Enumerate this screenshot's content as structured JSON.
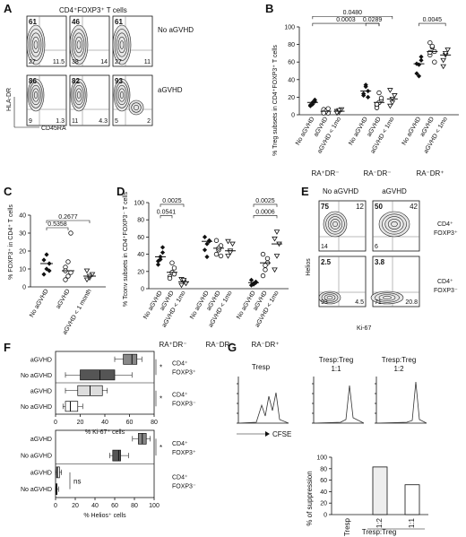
{
  "panels": {
    "A": {
      "letter": "A",
      "title": "CD4⁺FOXP3⁺ T cells",
      "row_labels": [
        "No aGVHD",
        "aGVHD"
      ],
      "x_label": "CD45RA",
      "y_label": "HLA-DR",
      "row1": [
        {
          "ul": "61",
          "ll": "27",
          "lr": "11.5"
        },
        {
          "ul": "46",
          "ll": "38",
          "lr": "14"
        },
        {
          "ul": "61",
          "ll": "27",
          "lr": "11"
        }
      ],
      "row2": [
        {
          "ul": "86",
          "ll": "9",
          "lr": "1.3"
        },
        {
          "ul": "82",
          "ll": "11",
          "lr": "4.3"
        },
        {
          "ul": "93",
          "ll": "5",
          "lr": "2"
        }
      ]
    },
    "B": {
      "letter": "B",
      "ylabel": "% Treg subsets in CD4⁺FOXP3⁺ T cells",
      "yticks": [
        "0",
        "20",
        "40",
        "60",
        "80",
        "100"
      ],
      "pvals": [
        "0.0480",
        "0.0003",
        "0.0289",
        "0.0045"
      ],
      "groups": [
        "No aGVHD",
        "aGVHD",
        "aGVHD < 1mo"
      ],
      "subsets": [
        "RA⁺DR⁻",
        "RA⁻DR⁻",
        "RA⁻DR⁺"
      ]
    },
    "C": {
      "letter": "C",
      "ylabel": "% FOXP3⁺ in CD4⁺ T cells",
      "yticks": [
        "0",
        "10",
        "20",
        "30",
        "40"
      ],
      "pvals": [
        "0.2677",
        "0.5358"
      ],
      "groups": [
        "No aGVHD",
        "aGVHD",
        "aGVHD < 1 month"
      ]
    },
    "D": {
      "letter": "D",
      "ylabel": "% Tconv subsets in CD4⁺FOXP3⁻ T cells",
      "yticks": [
        "0",
        "20",
        "40",
        "60",
        "80",
        "100"
      ],
      "pvals": [
        "0.0025",
        "0.0541",
        "0.0006",
        "0.0025"
      ],
      "groups": [
        "No aGVHD",
        "aGVHD",
        "aGVHD < 1mo"
      ],
      "subsets": [
        "RA⁺DR⁻",
        "RA⁻DR⁻",
        "RA⁻DR⁺"
      ]
    },
    "E": {
      "letter": "E",
      "col_labels": [
        "No aGVHD",
        "aGVHD"
      ],
      "row_labels": [
        "CD4⁺ FOXP3⁺",
        "CD4⁺ FOXP3⁻"
      ],
      "y_label": "Helios",
      "x_label": "Ki-67",
      "row1": [
        {
          "ul": "75",
          "ur": "12",
          "ll": "14"
        },
        {
          "ul": "50",
          "ur": "42",
          "ll": "6"
        }
      ],
      "row2": [
        {
          "ul": "2.5",
          "ll": "93",
          "lr": "4.5"
        },
        {
          "ul": "3.8",
          "ll": "71",
          "lr": "20.8"
        }
      ]
    },
    "F": {
      "letter": "F",
      "top": {
        "rows": [
          "aGVHD",
          "No aGVHD",
          "aGVHD",
          "No aGVHD"
        ],
        "groups": [
          "CD4⁺ FOXP3⁺",
          "CD4⁺ FOXP3⁻"
        ],
        "xticks": [
          "0",
          "20",
          "40",
          "60",
          "80"
        ],
        "xlabel": "% Ki-67⁺ cells",
        "sig": [
          "*",
          "*"
        ]
      },
      "bottom": {
        "rows": [
          "aGVHD",
          "No aGVHD",
          "aGVHD",
          "No aGVHD"
        ],
        "groups": [
          "CD4⁺ FOXP3⁺",
          "CD4⁺ FOXP3⁻"
        ],
        "xticks": [
          "0",
          "20",
          "40",
          "60",
          "80",
          "100"
        ],
        "xlabel": "% Helios⁺ cells",
        "sig": [
          "*",
          "ns"
        ]
      }
    },
    "G": {
      "letter": "G",
      "hist_titles": [
        "Tresp",
        "Tresp:Treg 1:1",
        "Tresp:Treg 1:2"
      ],
      "cfse_label": "CFSE",
      "ylabel": "% of suppression",
      "yticks": [
        "0",
        "20",
        "40",
        "60",
        "80",
        "100"
      ],
      "xlabel": "Tresp:Treg"
    }
  },
  "chart_data": [
    {
      "type": "scatter",
      "panel": "B",
      "categories": [
        "RA⁺DR⁻",
        "RA⁻DR⁻",
        "RA⁻DR⁺"
      ],
      "ylim": [
        0,
        100
      ],
      "series": [
        {
          "name": "No aGVHD",
          "values": [
            [
              11,
              14,
              17,
              10,
              12,
              15
            ],
            [
              22,
              32,
              27,
              24,
              34,
              20
            ],
            [
              47,
              57,
              62,
              58,
              44,
              66
            ]
          ]
        },
        {
          "name": "aGVHD",
          "values": [
            [
              3,
              5,
              2,
              6,
              4,
              7,
              2
            ],
            [
              11,
              14,
              17,
              8,
              25,
              19,
              12
            ],
            [
              68,
              77,
              72,
              82,
              78,
              60,
              71
            ]
          ]
        },
        {
          "name": "aGVHD < 1mo",
          "values": [
            [
              4,
              3,
              6,
              2,
              5
            ],
            [
              10,
              14,
              22,
              28,
              18
            ],
            [
              62,
              68,
              74,
              55,
              70
            ]
          ]
        }
      ]
    },
    {
      "type": "scatter",
      "panel": "C",
      "categories": [
        "No aGVHD",
        "aGVHD",
        "aGVHD < 1 month"
      ],
      "ylim": [
        0,
        40
      ],
      "series": [
        {
          "name": "No aGVHD",
          "values": [
            [
              7,
              10,
              13,
              15,
              18,
              9
            ]
          ]
        },
        {
          "name": "aGVHD",
          "values": [
            [
              4,
              6,
              8,
              11,
              14,
              30,
              9
            ]
          ]
        },
        {
          "name": "aGVHD < 1 month",
          "values": [
            [
              4,
              5,
              7,
              9,
              6
            ]
          ]
        }
      ]
    },
    {
      "type": "scatter",
      "panel": "D",
      "categories": [
        "RA⁺DR⁻",
        "RA⁻DR⁻",
        "RA⁻DR⁺"
      ],
      "ylim": [
        0,
        100
      ],
      "series": [
        {
          "name": "No aGVHD",
          "values": [
            [
              28,
              34,
              48,
              32,
              37,
              42
            ],
            [
              45,
              52,
              56,
              60,
              37,
              55
            ],
            [
              4,
              6,
              8,
              10,
              5,
              7
            ]
          ]
        },
        {
          "name": "aGVHD",
          "values": [
            [
              14,
              19,
              24,
              12,
              30,
              17
            ],
            [
              40,
              45,
              50,
              56,
              47,
              38
            ],
            [
              15,
              22,
              30,
              40,
              27,
              35
            ]
          ]
        },
        {
          "name": "aGVHD < 1mo",
          "values": [
            [
              4,
              8,
              6,
              11,
              10
            ],
            [
              38,
              44,
              52,
              55,
              42
            ],
            [
              22,
              38,
              52,
              58,
              66
            ]
          ]
        }
      ]
    },
    {
      "type": "bar",
      "panel": "G",
      "categories": [
        "Tresp",
        "1:2",
        "1:1"
      ],
      "values": [
        0,
        83,
        52
      ],
      "ylim": [
        0,
        100
      ]
    }
  ]
}
